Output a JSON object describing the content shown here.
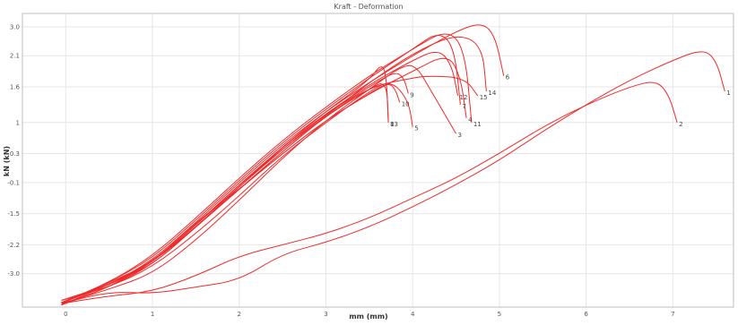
{
  "chart_data": {
    "type": "line",
    "title": "Kraft - Deformation",
    "xlabel": "mm (mm)",
    "ylabel": "kN (kN)",
    "xlim": [
      -0.5,
      7.7
    ],
    "ylim": [
      -3.6,
      3.0
    ],
    "grid": true,
    "legend": "none",
    "x_ticks": [
      "0",
      "1",
      "2",
      "3",
      "4",
      "5",
      "6",
      "7"
    ],
    "y_ticks": [
      "3.0",
      "2.1",
      "1.6",
      "1",
      "0.3",
      "-0.1",
      "-1.5",
      "-2.2",
      "-3.0"
    ],
    "series": [
      {
        "label": "1",
        "x": [
          -0.05,
          0.5,
          1.0,
          1.5,
          2.0,
          2.5,
          3.0,
          3.5,
          4.0,
          4.5,
          5.0,
          5.5,
          6.0,
          6.5,
          7.0,
          7.35,
          7.5,
          7.6
        ],
        "y": [
          -3.52,
          -3.25,
          -3.3,
          -3.15,
          -3.0,
          -2.4,
          -2.15,
          -1.8,
          -1.35,
          -0.85,
          -0.3,
          0.35,
          0.95,
          1.5,
          1.95,
          2.2,
          1.95,
          1.25
        ]
      },
      {
        "label": "2",
        "x": [
          -0.05,
          0.5,
          1.0,
          1.5,
          2.0,
          2.5,
          3.0,
          3.5,
          4.0,
          4.5,
          5.0,
          5.5,
          6.0,
          6.5,
          6.8,
          6.95,
          7.05
        ],
        "y": [
          -3.52,
          -3.35,
          -3.25,
          -2.9,
          -2.45,
          -2.2,
          -1.95,
          -1.6,
          -1.15,
          -0.7,
          -0.15,
          0.45,
          0.95,
          1.35,
          1.5,
          1.2,
          0.55
        ]
      },
      {
        "label": "3",
        "x": [
          -0.05,
          0.5,
          1.0,
          1.5,
          2.0,
          2.5,
          3.0,
          3.5,
          3.9,
          4.05,
          4.2,
          4.35,
          4.5
        ],
        "y": [
          -3.52,
          -3.2,
          -2.85,
          -2.1,
          -1.2,
          -0.25,
          0.6,
          1.3,
          1.85,
          1.8,
          1.3,
          0.8,
          0.3
        ]
      },
      {
        "label": "4",
        "x": [
          -0.05,
          0.5,
          1.0,
          1.5,
          2.0,
          2.5,
          3.0,
          3.5,
          4.0,
          4.4,
          4.55,
          4.62
        ],
        "y": [
          -3.52,
          -3.05,
          -2.6,
          -1.7,
          -0.95,
          -0.15,
          0.6,
          1.2,
          1.7,
          2.1,
          1.6,
          0.65
        ]
      },
      {
        "label": "5",
        "x": [
          -0.05,
          0.5,
          1.0,
          1.5,
          2.0,
          2.5,
          3.0,
          3.5,
          3.75,
          3.95,
          4.0
        ],
        "y": [
          -3.45,
          -3.15,
          -2.7,
          -1.95,
          -1.1,
          -0.2,
          0.55,
          1.25,
          1.5,
          1.05,
          0.45
        ]
      },
      {
        "label": "6",
        "x": [
          -0.05,
          0.5,
          1.0,
          1.5,
          2.0,
          2.5,
          3.0,
          3.5,
          4.0,
          4.5,
          4.8,
          4.95,
          5.05
        ],
        "y": [
          -3.55,
          -3.1,
          -2.55,
          -1.7,
          -0.8,
          0.05,
          0.8,
          1.45,
          2.05,
          2.6,
          2.8,
          2.5,
          1.6
        ]
      },
      {
        "label": "7",
        "x": [
          -0.05,
          0.5,
          1.0,
          1.5,
          2.0,
          2.5,
          3.0,
          3.5,
          4.0,
          4.3,
          4.48,
          4.55
        ],
        "y": [
          -3.5,
          -3.05,
          -2.5,
          -1.65,
          -0.75,
          0.1,
          0.85,
          1.55,
          2.2,
          2.6,
          2.25,
          0.95
        ]
      },
      {
        "label": "8",
        "x": [
          -0.05,
          0.5,
          1.0,
          1.5,
          2.0,
          2.5,
          3.0,
          3.5,
          3.7,
          3.72
        ],
        "y": [
          -3.55,
          -3.15,
          -2.65,
          -1.8,
          -0.95,
          -0.1,
          0.7,
          1.3,
          1.5,
          0.55
        ]
      },
      {
        "label": "9",
        "x": [
          -0.05,
          0.5,
          1.0,
          1.5,
          2.0,
          2.5,
          3.0,
          3.5,
          3.8,
          3.9,
          3.95
        ],
        "y": [
          -3.5,
          -3.1,
          -2.6,
          -1.75,
          -0.9,
          -0.05,
          0.75,
          1.35,
          1.7,
          1.55,
          1.2
        ]
      },
      {
        "label": "10",
        "x": [
          -0.05,
          0.5,
          1.0,
          1.5,
          2.0,
          2.5,
          3.0,
          3.5,
          3.72,
          3.8,
          3.85
        ],
        "y": [
          -3.45,
          -3.1,
          -2.6,
          -1.8,
          -0.95,
          -0.15,
          0.6,
          1.2,
          1.45,
          1.3,
          1.0
        ]
      },
      {
        "label": "11",
        "x": [
          -0.05,
          0.5,
          1.0,
          1.5,
          2.0,
          2.5,
          3.0,
          3.5,
          4.0,
          4.4,
          4.6,
          4.68
        ],
        "y": [
          -3.5,
          -3.05,
          -2.45,
          -1.6,
          -0.7,
          0.15,
          0.9,
          1.6,
          2.2,
          2.65,
          2.2,
          0.55
        ]
      },
      {
        "label": "12",
        "x": [
          -0.05,
          0.5,
          1.0,
          1.5,
          2.0,
          2.5,
          3.0,
          3.5,
          4.0,
          4.3,
          4.45,
          4.52
        ],
        "y": [
          -3.5,
          -3.1,
          -2.6,
          -1.8,
          -0.9,
          0.0,
          0.75,
          1.4,
          1.95,
          2.2,
          1.85,
          1.15
        ]
      },
      {
        "label": "13",
        "x": [
          -0.05,
          0.5,
          1.0,
          1.5,
          2.0,
          2.5,
          3.0,
          3.5,
          3.65,
          3.7,
          3.72
        ],
        "y": [
          -3.5,
          -3.1,
          -2.6,
          -1.75,
          -0.85,
          0.0,
          0.8,
          1.5,
          1.9,
          1.5,
          0.55
        ]
      },
      {
        "label": "14",
        "x": [
          -0.05,
          0.5,
          1.0,
          1.5,
          2.0,
          2.5,
          3.0,
          3.5,
          4.0,
          4.5,
          4.8,
          4.85
        ],
        "y": [
          -3.55,
          -3.15,
          -2.6,
          -1.75,
          -0.85,
          -0.05,
          0.7,
          1.45,
          2.1,
          2.55,
          2.3,
          1.25
        ]
      },
      {
        "label": "15",
        "x": [
          -0.05,
          0.5,
          1.0,
          1.5,
          2.0,
          2.5,
          3.0,
          3.5,
          4.0,
          4.2,
          4.6,
          4.75
        ],
        "y": [
          -3.5,
          -3.1,
          -2.65,
          -1.8,
          -0.95,
          -0.1,
          0.7,
          1.35,
          1.55,
          1.6,
          1.55,
          1.15
        ]
      }
    ],
    "curve_color": "#ee2a2a",
    "grid_color": "#e6e6e6",
    "axis_color": "#bdbdbd"
  }
}
